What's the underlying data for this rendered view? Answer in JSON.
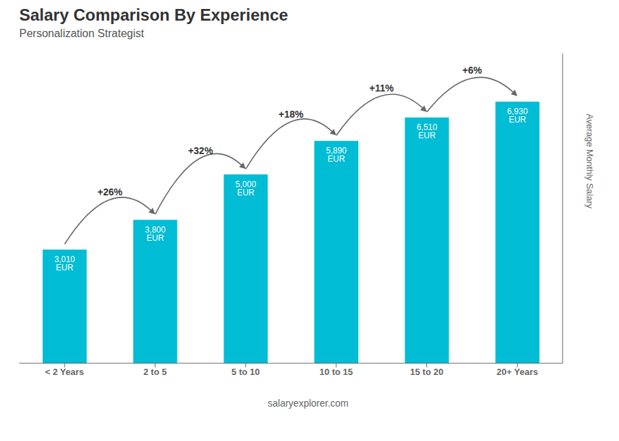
{
  "chart_data": {
    "type": "bar",
    "title": "Salary Comparison By Experience",
    "subtitle": "Personalization Strategist",
    "ylabel": "Average Monthly Salary",
    "categories": [
      "< 2 Years",
      "2 to 5",
      "5 to 10",
      "10 to 15",
      "15 to 20",
      "20+ Years"
    ],
    "values": [
      3010,
      3800,
      5000,
      5890,
      6510,
      6930
    ],
    "value_labels": [
      "3,010 EUR",
      "3,800 EUR",
      "5,000 EUR",
      "5,890 EUR",
      "6,510 EUR",
      "6,930 EUR"
    ],
    "data_labels": true,
    "annotations": [
      "+26%",
      "+32%",
      "+18%",
      "+11%",
      "+6%"
    ],
    "watermark": "salaryexplorer.com",
    "color": "#00bcd4",
    "ylim": [
      0,
      8200
    ],
    "yticks": [],
    "tick_labels": "x",
    "grid": false
  }
}
